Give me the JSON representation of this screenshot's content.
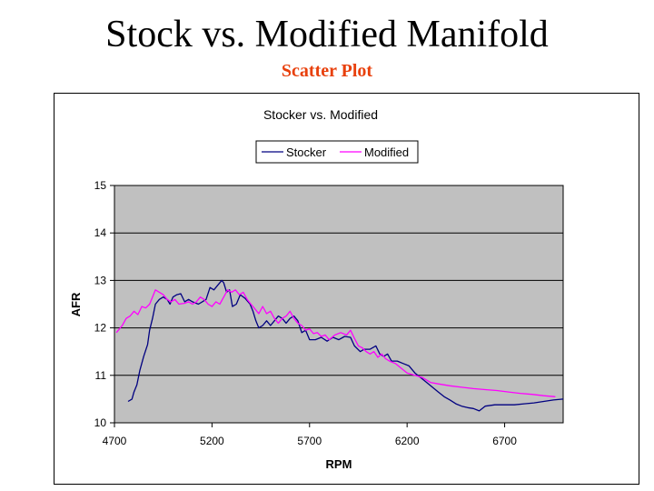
{
  "slide": {
    "title": "Stock vs. Modified Manifold",
    "subtitle": "Scatter Plot",
    "subtitle_color": "#e8400c"
  },
  "chart_data": {
    "type": "line",
    "title": "Stocker vs. Modified",
    "xlabel": "RPM",
    "ylabel": "AFR",
    "xlim": [
      4700,
      7000
    ],
    "ylim": [
      10,
      15
    ],
    "x_ticks": [
      "4700",
      "5200",
      "5700",
      "6200",
      "6700"
    ],
    "y_ticks": [
      "10",
      "11",
      "12",
      "13",
      "14",
      "15"
    ],
    "grid": true,
    "plot_background": "#c0c0c0",
    "legend_position": "top-center",
    "series": [
      {
        "name": "Stocker",
        "color": "#000080",
        "points": [
          [
            4770,
            10.45
          ],
          [
            4790,
            10.5
          ],
          [
            4800,
            10.65
          ],
          [
            4815,
            10.8
          ],
          [
            4830,
            11.1
          ],
          [
            4850,
            11.4
          ],
          [
            4870,
            11.65
          ],
          [
            4880,
            11.95
          ],
          [
            4895,
            12.2
          ],
          [
            4910,
            12.5
          ],
          [
            4930,
            12.6
          ],
          [
            4950,
            12.65
          ],
          [
            4970,
            12.6
          ],
          [
            4985,
            12.5
          ],
          [
            5000,
            12.65
          ],
          [
            5020,
            12.7
          ],
          [
            5040,
            12.72
          ],
          [
            5060,
            12.55
          ],
          [
            5080,
            12.6
          ],
          [
            5100,
            12.55
          ],
          [
            5130,
            12.5
          ],
          [
            5150,
            12.55
          ],
          [
            5170,
            12.6
          ],
          [
            5190,
            12.85
          ],
          [
            5210,
            12.8
          ],
          [
            5230,
            12.9
          ],
          [
            5250,
            13.0
          ],
          [
            5260,
            12.95
          ],
          [
            5275,
            12.75
          ],
          [
            5290,
            12.8
          ],
          [
            5305,
            12.45
          ],
          [
            5325,
            12.5
          ],
          [
            5345,
            12.7
          ],
          [
            5370,
            12.62
          ],
          [
            5395,
            12.5
          ],
          [
            5410,
            12.35
          ],
          [
            5425,
            12.15
          ],
          [
            5440,
            12.0
          ],
          [
            5460,
            12.05
          ],
          [
            5480,
            12.15
          ],
          [
            5500,
            12.05
          ],
          [
            5520,
            12.15
          ],
          [
            5540,
            12.25
          ],
          [
            5560,
            12.2
          ],
          [
            5580,
            12.1
          ],
          [
            5600,
            12.2
          ],
          [
            5620,
            12.25
          ],
          [
            5640,
            12.15
          ],
          [
            5660,
            11.9
          ],
          [
            5680,
            11.95
          ],
          [
            5700,
            11.75
          ],
          [
            5730,
            11.75
          ],
          [
            5760,
            11.8
          ],
          [
            5790,
            11.72
          ],
          [
            5820,
            11.8
          ],
          [
            5850,
            11.75
          ],
          [
            5880,
            11.82
          ],
          [
            5910,
            11.8
          ],
          [
            5930,
            11.62
          ],
          [
            5960,
            11.5
          ],
          [
            5980,
            11.55
          ],
          [
            6010,
            11.55
          ],
          [
            6040,
            11.62
          ],
          [
            6060,
            11.45
          ],
          [
            6080,
            11.4
          ],
          [
            6100,
            11.45
          ],
          [
            6120,
            11.3
          ],
          [
            6150,
            11.3
          ],
          [
            6180,
            11.25
          ],
          [
            6210,
            11.2
          ],
          [
            6240,
            11.05
          ],
          [
            6270,
            10.95
          ],
          [
            6300,
            10.85
          ],
          [
            6330,
            10.75
          ],
          [
            6360,
            10.65
          ],
          [
            6390,
            10.55
          ],
          [
            6420,
            10.48
          ],
          [
            6450,
            10.4
          ],
          [
            6480,
            10.35
          ],
          [
            6510,
            10.32
          ],
          [
            6540,
            10.3
          ],
          [
            6570,
            10.25
          ],
          [
            6600,
            10.35
          ],
          [
            6650,
            10.38
          ],
          [
            6700,
            10.38
          ],
          [
            6750,
            10.38
          ],
          [
            6800,
            10.4
          ],
          [
            6850,
            10.42
          ],
          [
            6900,
            10.45
          ],
          [
            6950,
            10.48
          ],
          [
            7000,
            10.5
          ]
        ]
      },
      {
        "name": "Modified",
        "color": "#ff00ff",
        "points": [
          [
            4710,
            11.9
          ],
          [
            4720,
            11.95
          ],
          [
            4740,
            12.05
          ],
          [
            4760,
            12.2
          ],
          [
            4780,
            12.25
          ],
          [
            4800,
            12.35
          ],
          [
            4820,
            12.28
          ],
          [
            4840,
            12.45
          ],
          [
            4860,
            12.42
          ],
          [
            4880,
            12.5
          ],
          [
            4895,
            12.65
          ],
          [
            4910,
            12.8
          ],
          [
            4930,
            12.75
          ],
          [
            4950,
            12.7
          ],
          [
            4970,
            12.6
          ],
          [
            4990,
            12.55
          ],
          [
            5010,
            12.6
          ],
          [
            5030,
            12.5
          ],
          [
            5060,
            12.52
          ],
          [
            5080,
            12.55
          ],
          [
            5100,
            12.5
          ],
          [
            5120,
            12.55
          ],
          [
            5140,
            12.65
          ],
          [
            5160,
            12.6
          ],
          [
            5180,
            12.5
          ],
          [
            5200,
            12.45
          ],
          [
            5220,
            12.55
          ],
          [
            5240,
            12.5
          ],
          [
            5260,
            12.65
          ],
          [
            5280,
            12.8
          ],
          [
            5300,
            12.75
          ],
          [
            5320,
            12.8
          ],
          [
            5340,
            12.7
          ],
          [
            5360,
            12.75
          ],
          [
            5380,
            12.6
          ],
          [
            5400,
            12.5
          ],
          [
            5420,
            12.4
          ],
          [
            5440,
            12.3
          ],
          [
            5460,
            12.45
          ],
          [
            5480,
            12.3
          ],
          [
            5500,
            12.35
          ],
          [
            5520,
            12.2
          ],
          [
            5540,
            12.1
          ],
          [
            5560,
            12.2
          ],
          [
            5580,
            12.25
          ],
          [
            5600,
            12.35
          ],
          [
            5620,
            12.2
          ],
          [
            5640,
            12.1
          ],
          [
            5660,
            12.05
          ],
          [
            5680,
            11.95
          ],
          [
            5700,
            11.98
          ],
          [
            5720,
            11.88
          ],
          [
            5740,
            11.9
          ],
          [
            5760,
            11.82
          ],
          [
            5780,
            11.85
          ],
          [
            5800,
            11.75
          ],
          [
            5830,
            11.85
          ],
          [
            5860,
            11.9
          ],
          [
            5890,
            11.85
          ],
          [
            5910,
            11.95
          ],
          [
            5930,
            11.78
          ],
          [
            5950,
            11.62
          ],
          [
            5970,
            11.58
          ],
          [
            5990,
            11.5
          ],
          [
            6010,
            11.45
          ],
          [
            6030,
            11.5
          ],
          [
            6050,
            11.38
          ],
          [
            6070,
            11.45
          ],
          [
            6090,
            11.35
          ],
          [
            6110,
            11.3
          ],
          [
            6140,
            11.25
          ],
          [
            6170,
            11.15
          ],
          [
            6200,
            11.05
          ],
          [
            6240,
            11.0
          ],
          [
            6280,
            10.95
          ],
          [
            6320,
            10.85
          ],
          [
            6360,
            10.82
          ],
          [
            6420,
            10.78
          ],
          [
            6480,
            10.75
          ],
          [
            6540,
            10.72
          ],
          [
            6600,
            10.7
          ],
          [
            6660,
            10.68
          ],
          [
            6720,
            10.65
          ],
          [
            6780,
            10.62
          ],
          [
            6840,
            10.6
          ],
          [
            6900,
            10.57
          ],
          [
            6960,
            10.55
          ]
        ]
      }
    ]
  }
}
